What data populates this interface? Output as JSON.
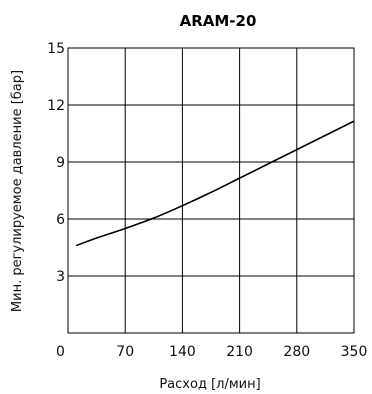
{
  "chart_data": {
    "type": "line",
    "title": "ARAM-20",
    "xlabel": "Расход [л/мин]",
    "ylabel": "Мин. регулируемое давление [бар]",
    "xlim": [
      0,
      350
    ],
    "ylim": [
      0,
      15
    ],
    "xticks": [
      0,
      70,
      140,
      210,
      280,
      350
    ],
    "yticks": [
      3,
      6,
      9,
      12,
      15
    ],
    "x_tick_labels": [
      "0",
      "70",
      "140",
      "210",
      "280",
      "350"
    ],
    "y_tick_labels": [
      "3",
      "6",
      "9",
      "12",
      "15"
    ],
    "grid": true,
    "series": [
      {
        "x": [
          10,
          35,
          70,
          105,
          140,
          175,
          210,
          245,
          280,
          315,
          350
        ],
        "values": [
          4.6,
          5.0,
          5.5,
          6.05,
          6.7,
          7.4,
          8.15,
          8.9,
          9.65,
          10.4,
          11.15
        ]
      }
    ]
  }
}
